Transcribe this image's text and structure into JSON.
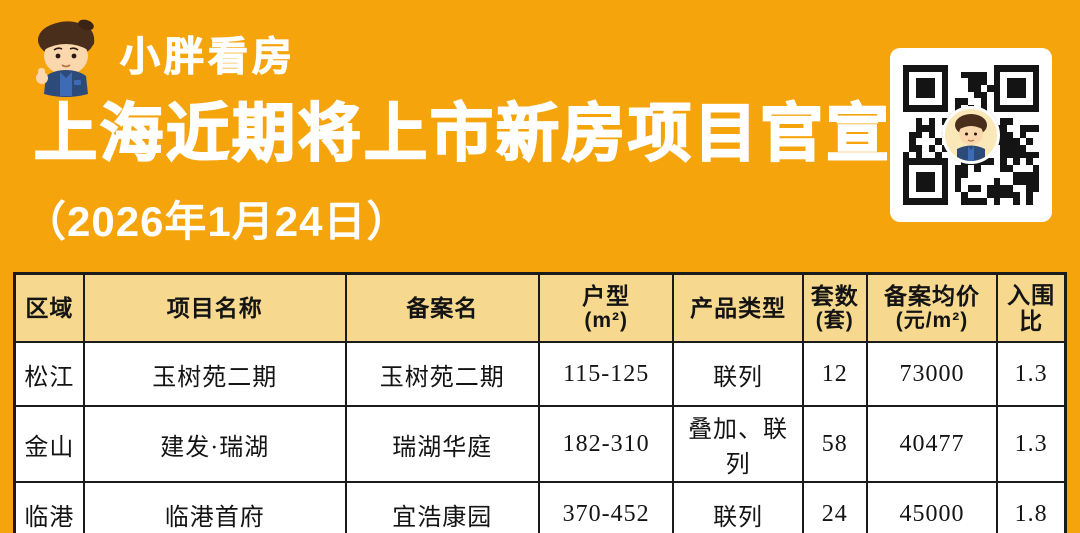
{
  "page": {
    "background": "#F6A40B"
  },
  "brand": {
    "logo_text": "小胖看房",
    "mascot_icon": "mascot-boy-icon"
  },
  "header": {
    "title": "上海近期将上市新房项目官宣",
    "date": "（2026年1月24日）"
  },
  "qr_card": {
    "icon": "qr-code",
    "center_icon": "mascot-boy-avatar"
  },
  "colors": {
    "background_orange": "#F6A40B",
    "table_header_tan": "#F6D88E",
    "table_border_black": "#1B1B1B",
    "text_white": "#FFFFFF",
    "mascot_hair_brown": "#4A2E1C",
    "mascot_jacket_blue": "#2C4B78"
  },
  "table": {
    "columns": [
      {
        "label": "区域",
        "sub": ""
      },
      {
        "label": "项目名称",
        "sub": ""
      },
      {
        "label": "备案名",
        "sub": ""
      },
      {
        "label": "户型",
        "sub": "(m²)"
      },
      {
        "label": "产品类型",
        "sub": ""
      },
      {
        "label": "套数",
        "sub": "(套)"
      },
      {
        "label": "备案均价",
        "sub": "(元/m²)"
      },
      {
        "label": "入围比",
        "sub": ""
      }
    ],
    "rows": [
      [
        "松江",
        "玉树苑二期",
        "玉树苑二期",
        "115-125",
        "联列",
        "12",
        "73000",
        "1.3"
      ],
      [
        "金山",
        "建发·瑞湖",
        "瑞湖华庭",
        "182-310",
        "叠加、联列",
        "58",
        "40477",
        "1.3"
      ],
      [
        "临港",
        "临港首府",
        "宜浩康园",
        "370-452",
        "联列",
        "24",
        "45000",
        "1.8"
      ]
    ]
  }
}
